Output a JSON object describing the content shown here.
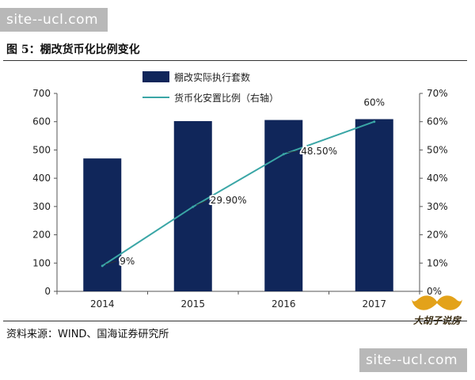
{
  "watermark": "site--ucl.com",
  "figure_title": "图 5：棚改货币化比例变化",
  "source": "资料来源：WIND、国海证券研究所",
  "logo_text": "大胡子说房",
  "colors": {
    "bar": "#10265a",
    "line": "#3aa6a6",
    "axis": "#555555"
  },
  "chart_data": {
    "type": "bar",
    "categories": [
      "2014",
      "2015",
      "2016",
      "2017"
    ],
    "series": [
      {
        "name": "棚改实际执行套数",
        "type": "bar",
        "axis": "left",
        "values": [
          470,
          602,
          606,
          609
        ]
      },
      {
        "name": "货币化安置比例（右轴）",
        "type": "line",
        "axis": "right",
        "values": [
          9,
          29.9,
          48.5,
          60
        ],
        "labels": [
          "9%",
          "29.90%",
          "48.50%",
          "60%"
        ]
      }
    ],
    "ylim": [
      0,
      700
    ],
    "y_ticks": [
      "0",
      "100",
      "200",
      "300",
      "400",
      "500",
      "600",
      "700"
    ],
    "y2lim": [
      0,
      70
    ],
    "y2_ticks": [
      "0%",
      "10%",
      "20%",
      "30%",
      "40%",
      "50%",
      "60%",
      "70%"
    ],
    "legend_position": "top-center",
    "grid": false
  }
}
